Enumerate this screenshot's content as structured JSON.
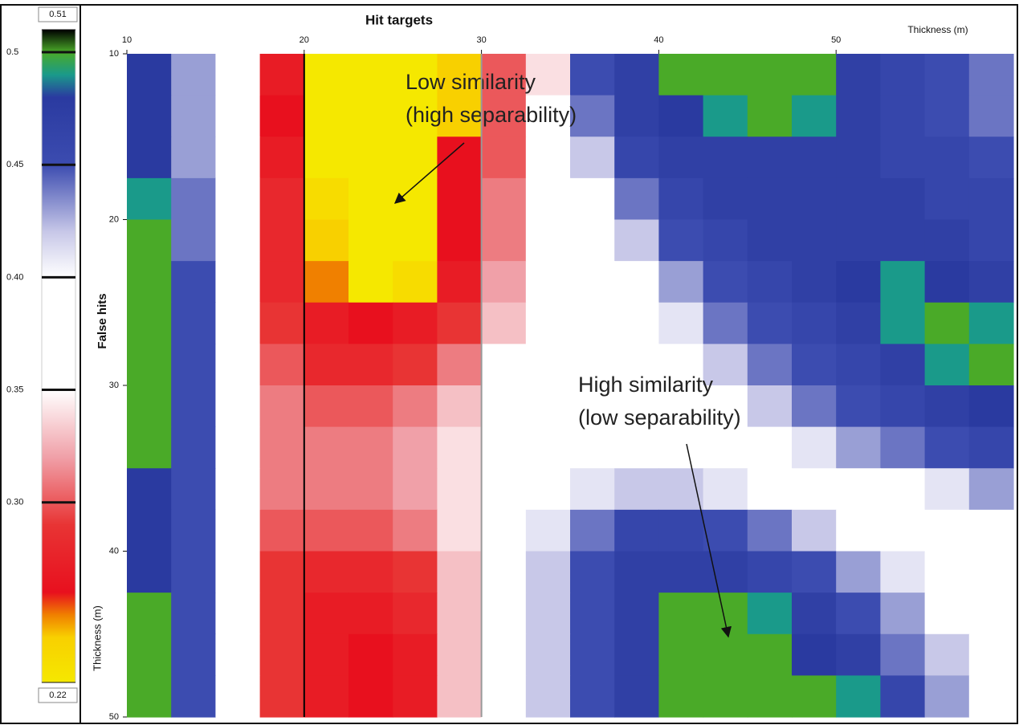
{
  "chart_data": {
    "type": "heatmap",
    "title": "Hit targets",
    "x_label": "Thickness (m)",
    "y_label": "False hits",
    "y_label_2": "Thickness (m)",
    "xlim": [
      10,
      60
    ],
    "ylim": [
      10,
      50
    ],
    "xticks": [
      10,
      20,
      30,
      40,
      50
    ],
    "yticks": [
      10,
      20,
      30,
      40,
      50
    ],
    "clim": [
      0.22,
      0.51
    ],
    "cticks": [
      0.51,
      0.5,
      0.45,
      {
        "value": 0.4,
        "label": "0.40"
      },
      0.35,
      {
        "value": 0.3,
        "label": "0.30"
      },
      0.22
    ],
    "colorscale": [
      [
        0.22,
        "#f5e800"
      ],
      [
        0.24,
        "#f8d000"
      ],
      [
        0.25,
        "#f08000"
      ],
      [
        0.26,
        "#e8101e"
      ],
      [
        0.29,
        "#e83434"
      ],
      [
        0.32,
        "#f0a0a8"
      ],
      [
        0.35,
        "#ffffff"
      ],
      [
        0.4,
        "#ffffff"
      ],
      [
        0.42,
        "#c8c8e8"
      ],
      [
        0.45,
        "#3c4cb0"
      ],
      [
        0.48,
        "#2a3aa0"
      ],
      [
        0.49,
        "#1a9a8a"
      ],
      [
        0.5,
        "#4aaa28"
      ],
      [
        0.51,
        "#000000"
      ]
    ],
    "vlines": [
      {
        "x": 20,
        "color": "#000000"
      },
      {
        "x": 30,
        "color": "#999999"
      }
    ],
    "annotations": [
      {
        "lines": [
          "Low similarity",
          "(high separability)"
        ]
      },
      {
        "lines": [
          "High similarity",
          "(low separability)"
        ]
      }
    ],
    "z": [
      [
        0.48,
        0.43,
        0.37,
        0.27,
        0.22,
        0.22,
        0.22,
        0.24,
        0.3,
        0.34,
        0.45,
        0.47,
        0.5,
        0.5,
        0.5,
        0.5,
        0.47,
        0.46,
        0.45,
        0.44
      ],
      [
        0.48,
        0.43,
        0.37,
        0.26,
        0.22,
        0.22,
        0.22,
        0.24,
        0.3,
        0.35,
        0.44,
        0.47,
        0.48,
        0.49,
        0.5,
        0.49,
        0.47,
        0.46,
        0.45,
        0.44
      ],
      [
        0.48,
        0.43,
        0.36,
        0.27,
        0.22,
        0.22,
        0.22,
        0.26,
        0.3,
        0.36,
        0.42,
        0.46,
        0.47,
        0.47,
        0.47,
        0.47,
        0.47,
        0.46,
        0.46,
        0.45
      ],
      [
        0.49,
        0.44,
        0.36,
        0.28,
        0.23,
        0.22,
        0.22,
        0.26,
        0.31,
        0.37,
        0.4,
        0.44,
        0.46,
        0.47,
        0.47,
        0.47,
        0.47,
        0.47,
        0.46,
        0.46
      ],
      [
        0.5,
        0.44,
        0.35,
        0.28,
        0.24,
        0.22,
        0.22,
        0.26,
        0.31,
        0.38,
        0.39,
        0.42,
        0.45,
        0.46,
        0.47,
        0.47,
        0.47,
        0.47,
        0.47,
        0.46
      ],
      [
        0.5,
        0.45,
        0.35,
        0.28,
        0.25,
        0.22,
        0.23,
        0.27,
        0.32,
        0.38,
        0.38,
        0.4,
        0.43,
        0.45,
        0.46,
        0.47,
        0.48,
        0.49,
        0.48,
        0.47
      ],
      [
        0.5,
        0.45,
        0.35,
        0.29,
        0.27,
        0.26,
        0.27,
        0.29,
        0.33,
        0.38,
        0.37,
        0.39,
        0.41,
        0.44,
        0.45,
        0.46,
        0.47,
        0.49,
        0.5,
        0.49
      ],
      [
        0.5,
        0.45,
        0.36,
        0.3,
        0.28,
        0.28,
        0.29,
        0.31,
        0.35,
        0.38,
        0.37,
        0.38,
        0.4,
        0.42,
        0.44,
        0.45,
        0.46,
        0.47,
        0.49,
        0.5
      ],
      [
        0.5,
        0.45,
        0.36,
        0.31,
        0.3,
        0.3,
        0.31,
        0.33,
        0.36,
        0.38,
        0.38,
        0.38,
        0.39,
        0.4,
        0.42,
        0.44,
        0.45,
        0.46,
        0.47,
        0.48
      ],
      [
        0.5,
        0.45,
        0.37,
        0.31,
        0.31,
        0.31,
        0.32,
        0.34,
        0.37,
        0.38,
        0.38,
        0.38,
        0.38,
        0.38,
        0.39,
        0.41,
        0.43,
        0.44,
        0.45,
        0.46
      ],
      [
        0.48,
        0.45,
        0.37,
        0.31,
        0.31,
        0.31,
        0.32,
        0.34,
        0.37,
        0.38,
        0.41,
        0.42,
        0.42,
        0.41,
        0.4,
        0.39,
        0.38,
        0.39,
        0.41,
        0.43
      ],
      [
        0.48,
        0.45,
        0.37,
        0.3,
        0.3,
        0.3,
        0.31,
        0.34,
        0.37,
        0.41,
        0.44,
        0.46,
        0.46,
        0.45,
        0.44,
        0.42,
        0.4,
        0.38,
        0.38,
        0.38
      ],
      [
        0.48,
        0.45,
        0.37,
        0.29,
        0.28,
        0.28,
        0.29,
        0.33,
        0.37,
        0.42,
        0.45,
        0.47,
        0.47,
        0.47,
        0.46,
        0.45,
        0.43,
        0.41,
        0.38,
        0.38
      ],
      [
        0.5,
        0.45,
        0.37,
        0.29,
        0.27,
        0.27,
        0.28,
        0.33,
        0.37,
        0.42,
        0.45,
        0.47,
        0.5,
        0.5,
        0.49,
        0.47,
        0.45,
        0.43,
        0.4,
        0.38
      ],
      [
        0.5,
        0.45,
        0.37,
        0.29,
        0.27,
        0.26,
        0.27,
        0.33,
        0.37,
        0.42,
        0.45,
        0.47,
        0.5,
        0.5,
        0.5,
        0.48,
        0.47,
        0.44,
        0.42,
        0.39
      ],
      [
        0.5,
        0.45,
        0.37,
        0.29,
        0.27,
        0.26,
        0.27,
        0.33,
        0.37,
        0.42,
        0.45,
        0.47,
        0.5,
        0.5,
        0.5,
        0.5,
        0.49,
        0.46,
        0.43,
        0.4
      ]
    ]
  }
}
